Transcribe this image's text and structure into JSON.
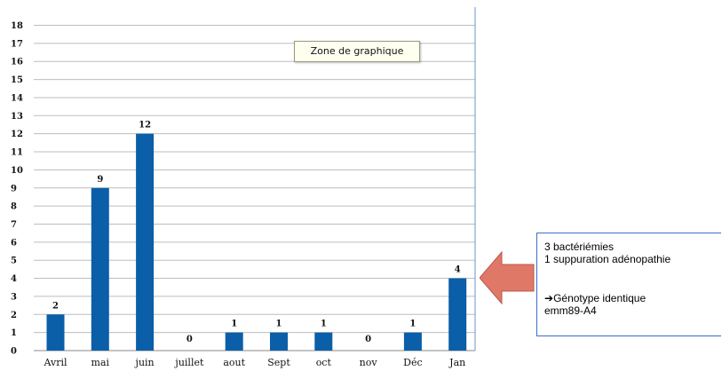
{
  "chart_data": {
    "type": "bar",
    "categories": [
      "Avril",
      "mai",
      "juin",
      "juillet",
      "aout",
      "Sept",
      "oct",
      "nov",
      "Déc",
      "Jan"
    ],
    "values": [
      2,
      9,
      12,
      0,
      1,
      1,
      1,
      0,
      1,
      4
    ],
    "yticks": [
      0,
      1,
      2,
      3,
      4,
      5,
      6,
      7,
      8,
      9,
      10,
      11,
      12,
      13,
      14,
      15,
      16,
      17,
      18
    ],
    "ylim": [
      0,
      18
    ],
    "grid": true,
    "bar_color": "#0b5ea8",
    "title": "",
    "xlabel": "",
    "ylabel": ""
  },
  "tooltip": {
    "text": "Zone de graphique"
  },
  "note": {
    "line1": "3  bactériémies",
    "line2": "1 suppuration adénopathie",
    "line3": "Génotype identique",
    "line3_prefix": "➔",
    "line4": "emm89-A4",
    "border_color": "#3a6fc4"
  },
  "arrow": {
    "color": "#e07868",
    "icon": "left-arrow-icon"
  }
}
